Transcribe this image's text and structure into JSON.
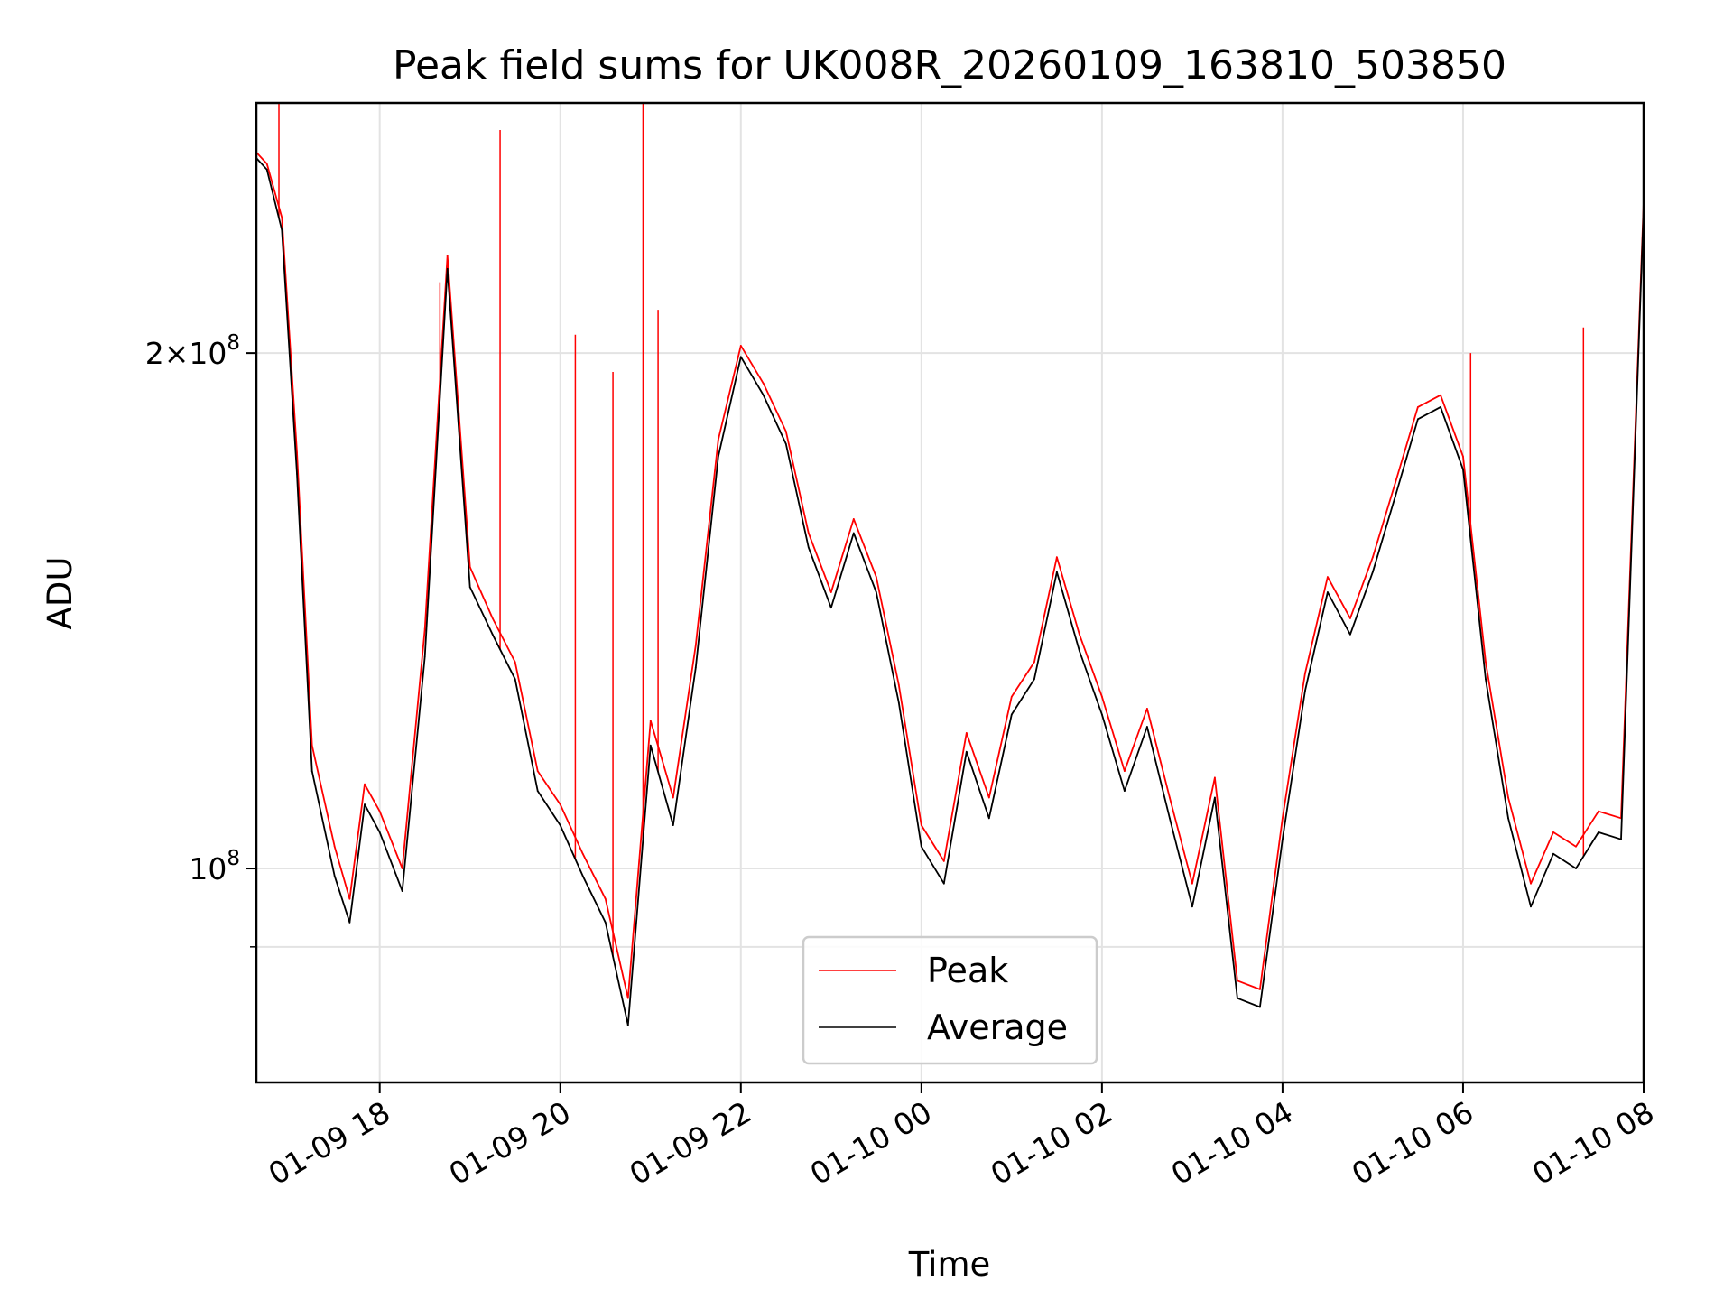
{
  "chart_data": {
    "type": "line",
    "title": "Peak field sums for UK008R_20260109_163810_503850",
    "xlabel": "Time",
    "ylabel": "ADU",
    "yscale": "log",
    "xlim": [
      "01-09 16:38",
      "01-10 08:00"
    ],
    "ylim": [
      75000000,
      280000000
    ],
    "grid": true,
    "legend_position": "lower center",
    "x_ticks": [
      "01-09 18",
      "01-09 20",
      "01-09 22",
      "01-10 00",
      "01-10 02",
      "01-10 04",
      "01-10 06",
      "01-10 08"
    ],
    "y_ticks": [
      {
        "value": 100000000,
        "label": "10^8"
      },
      {
        "value": 200000000,
        "label": "2×10^8"
      }
    ],
    "x": [
      "01-09 16:38",
      "01-09 16:45",
      "01-09 16:55",
      "01-09 17:05",
      "01-09 17:15",
      "01-09 17:30",
      "01-09 17:40",
      "01-09 17:50",
      "01-09 18:00",
      "01-09 18:15",
      "01-09 18:30",
      "01-09 18:45",
      "01-09 19:00",
      "01-09 19:15",
      "01-09 19:30",
      "01-09 19:45",
      "01-09 20:00",
      "01-09 20:15",
      "01-09 20:30",
      "01-09 20:45",
      "01-09 21:00",
      "01-09 21:15",
      "01-09 21:30",
      "01-09 21:45",
      "01-09 22:00",
      "01-09 22:15",
      "01-09 22:30",
      "01-09 22:45",
      "01-09 23:00",
      "01-09 23:15",
      "01-09 23:30",
      "01-09 23:45",
      "01-10 00:00",
      "01-10 00:15",
      "01-10 00:30",
      "01-10 00:45",
      "01-10 01:00",
      "01-10 01:15",
      "01-10 01:30",
      "01-10 01:45",
      "01-10 02:00",
      "01-10 02:15",
      "01-10 02:30",
      "01-10 02:45",
      "01-10 03:00",
      "01-10 03:15",
      "01-10 03:30",
      "01-10 03:45",
      "01-10 04:00",
      "01-10 04:15",
      "01-10 04:30",
      "01-10 04:45",
      "01-10 05:00",
      "01-10 05:15",
      "01-10 05:30",
      "01-10 05:45",
      "01-10 06:00",
      "01-10 06:15",
      "01-10 06:30",
      "01-10 06:45",
      "01-10 07:00",
      "01-10 07:15",
      "01-10 07:30",
      "01-10 07:45",
      "01-10 08:00"
    ],
    "series": [
      {
        "name": "Peak",
        "color": "#ff0000",
        "values": [
          262000000,
          258000000,
          240000000,
          175000000,
          118000000,
          103000000,
          96000000,
          112000000,
          108000000,
          100000000,
          138000000,
          228000000,
          150000000,
          140000000,
          132000000,
          114000000,
          109000000,
          102000000,
          96000000,
          84000000,
          122000000,
          110000000,
          135000000,
          178000000,
          202000000,
          192000000,
          180000000,
          157000000,
          145000000,
          160000000,
          148000000,
          128000000,
          106000000,
          101000000,
          120000000,
          110000000,
          126000000,
          132000000,
          152000000,
          137000000,
          126000000,
          114000000,
          124000000,
          110000000,
          98000000,
          113000000,
          86000000,
          85000000,
          107000000,
          130000000,
          148000000,
          140000000,
          152000000,
          168000000,
          186000000,
          189000000,
          174000000,
          132000000,
          110000000,
          98000000,
          105000000,
          103000000,
          108000000,
          107000000,
          245000000
        ]
      },
      {
        "name": "Average",
        "color": "#000000",
        "values": [
          260000000,
          256000000,
          236000000,
          170000000,
          114000000,
          99000000,
          93000000,
          109000000,
          105000000,
          97000000,
          133000000,
          224000000,
          146000000,
          137000000,
          129000000,
          111000000,
          106000000,
          99000000,
          93000000,
          81000000,
          118000000,
          106000000,
          131000000,
          174000000,
          199000000,
          189000000,
          177000000,
          154000000,
          142000000,
          157000000,
          145000000,
          125000000,
          103000000,
          98000000,
          117000000,
          107000000,
          123000000,
          129000000,
          149000000,
          134000000,
          123000000,
          111000000,
          121000000,
          107000000,
          95000000,
          110000000,
          84000000,
          83000000,
          104000000,
          127000000,
          145000000,
          137000000,
          149000000,
          165000000,
          183000000,
          186000000,
          171000000,
          129000000,
          107000000,
          95000000,
          102000000,
          100000000,
          105000000,
          104000000,
          243000000
        ]
      }
    ],
    "spikes": [
      {
        "x": "01-09 16:53",
        "value": 280000000
      },
      {
        "x": "01-09 18:40",
        "value": 220000000
      },
      {
        "x": "01-09 19:20",
        "value": 270000000
      },
      {
        "x": "01-09 20:10",
        "value": 205000000
      },
      {
        "x": "01-09 20:35",
        "value": 195000000
      },
      {
        "x": "01-09 20:55",
        "value": 280000000
      },
      {
        "x": "01-09 21:05",
        "value": 212000000
      },
      {
        "x": "01-10 06:05",
        "value": 200000000
      },
      {
        "x": "01-10 07:20",
        "value": 207000000
      }
    ]
  },
  "legend": {
    "peak_label": "Peak",
    "average_label": "Average"
  }
}
